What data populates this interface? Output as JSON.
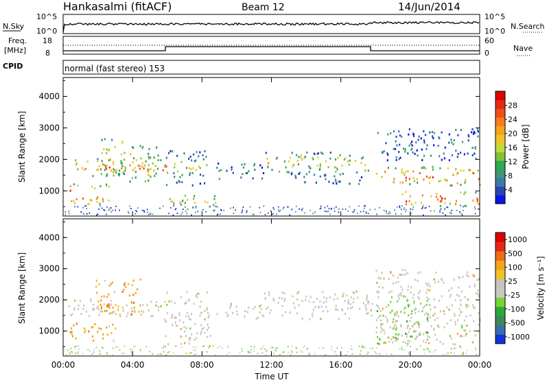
{
  "header": {
    "station": "Hankasalmi (fitACF)",
    "beam": "Beam 12",
    "date": "14/Jun/2014"
  },
  "noise_panel": {
    "left_label": "N.Sky",
    "right_label": "N.Search",
    "left_ticks": [
      "10^5",
      "10^0"
    ],
    "right_ticks": [
      "10^5",
      "10^0"
    ]
  },
  "freq_panel": {
    "left_label_1": "Freq.",
    "left_label_2": "[MHz]",
    "right_label": "Nave",
    "left_ticks": [
      "18",
      "8"
    ],
    "right_ticks": [
      "60",
      "0"
    ]
  },
  "cpid": {
    "label": "CPID",
    "mode": "normal (fast stereo) 153"
  },
  "chart_data": [
    {
      "type": "heatmap",
      "title": "",
      "ylabel": "Slant Range [km]",
      "yticks": [
        "1000",
        "2000",
        "3000",
        "4000"
      ],
      "ylim": [
        200,
        4600
      ],
      "xlim": [
        0,
        24
      ],
      "colorbar": {
        "label": "Power [dB]",
        "ticks": [
          "4",
          "8",
          "12",
          "16",
          "20",
          "24",
          "28"
        ],
        "colors": [
          "#0a14e6",
          "#2a45b0",
          "#3a7aa5",
          "#3f9678",
          "#2faa4e",
          "#7cc23a",
          "#c8d83a",
          "#f2c028",
          "#f5a21e",
          "#f47e1a",
          "#ee5018",
          "#e42814",
          "#e00000"
        ]
      },
      "bands": [
        {
          "t0": 0.3,
          "t1": 6.0,
          "r0": 1500,
          "r1": 2050,
          "level": 0.75
        },
        {
          "t0": 0.3,
          "t1": 2.6,
          "r0": 600,
          "r1": 1250,
          "level": 0.9
        },
        {
          "t0": 2.0,
          "t1": 3.6,
          "r0": 1500,
          "r1": 2700,
          "level": 0.6
        },
        {
          "t0": 3.8,
          "t1": 5.5,
          "r0": 1300,
          "r1": 2500,
          "level": 0.55
        },
        {
          "t0": 5.8,
          "t1": 8.3,
          "r0": 1200,
          "r1": 2300,
          "level": 0.4
        },
        {
          "t0": 6.0,
          "t1": 8.8,
          "r0": 450,
          "r1": 900,
          "level": 0.55
        },
        {
          "t0": 8.8,
          "t1": 11.6,
          "r0": 1400,
          "r1": 1900,
          "level": 0.25
        },
        {
          "t0": 11.5,
          "t1": 17.8,
          "r0": 1600,
          "r1": 2250,
          "level": 0.55
        },
        {
          "t0": 13.0,
          "t1": 17.5,
          "r0": 1250,
          "r1": 1600,
          "level": 0.25
        },
        {
          "t0": 18.0,
          "t1": 24.0,
          "r0": 1200,
          "r1": 1800,
          "level": 0.8
        },
        {
          "t0": 19.5,
          "t1": 24.0,
          "r0": 550,
          "r1": 1000,
          "level": 0.95
        },
        {
          "t0": 18.0,
          "t1": 24.0,
          "r0": 2000,
          "r1": 3000,
          "level": 0.2
        }
      ]
    },
    {
      "type": "heatmap",
      "title": "",
      "ylabel": "Slant Range [km]",
      "xlabel": "Time UT",
      "yticks": [
        "1000",
        "2000",
        "3000",
        "4000"
      ],
      "xticks": [
        "00:00",
        "04:00",
        "08:00",
        "12:00",
        "16:00",
        "20:00",
        "00:00"
      ],
      "ylim": [
        200,
        4600
      ],
      "xlim": [
        0,
        24
      ],
      "colorbar": {
        "label": "Velocity [m s⁻¹]",
        "ticks": [
          "1000",
          "500",
          "100",
          "25",
          "-25",
          "-100",
          "-500",
          "-1000"
        ],
        "colors": [
          "#1232d8",
          "#3a6ea8",
          "#3d8a5a",
          "#2fa63a",
          "#7ad23a",
          "#c8c8c0",
          "#c4c4bc",
          "#f2c028",
          "#f5a21e",
          "#ee6a18",
          "#e42814",
          "#e00000"
        ]
      },
      "bands": [
        {
          "t0": 0.3,
          "t1": 6.0,
          "r0": 1500,
          "r1": 2050,
          "kind": "gray"
        },
        {
          "t0": 0.3,
          "t1": 3.0,
          "r0": 700,
          "r1": 1300,
          "kind": "orange"
        },
        {
          "t0": 1.8,
          "t1": 4.5,
          "r0": 1500,
          "r1": 2700,
          "kind": "orange"
        },
        {
          "t0": 5.8,
          "t1": 8.5,
          "r0": 500,
          "r1": 2300,
          "kind": "gray"
        },
        {
          "t0": 8.8,
          "t1": 11.6,
          "r0": 1400,
          "r1": 1900,
          "kind": "gray"
        },
        {
          "t0": 11.5,
          "t1": 17.8,
          "r0": 1400,
          "r1": 2300,
          "kind": "gray"
        },
        {
          "t0": 18.0,
          "t1": 24.0,
          "r0": 600,
          "r1": 1900,
          "kind": "gray"
        },
        {
          "t0": 18.0,
          "t1": 21.0,
          "r0": 600,
          "r1": 2000,
          "kind": "green"
        },
        {
          "t0": 18.0,
          "t1": 24.0,
          "r0": 2000,
          "r1": 3000,
          "kind": "gray"
        }
      ]
    }
  ]
}
